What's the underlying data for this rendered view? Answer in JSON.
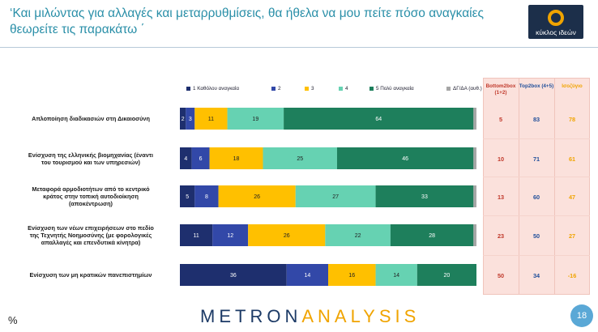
{
  "title": "‘Και μιλώντας για αλλαγές και μεταρρυθμίσεις, θα ήθελα να μου πείτε πόσο αναγκαίες θεωρείτε τις παρακάτω ΄",
  "logo_text": "κύκλος ιδεών",
  "page_number": "18",
  "percent_sign": "%",
  "brand": {
    "part1": "METRON",
    "part2": "ANALYSIS"
  },
  "colors": {
    "title": "#2a8fa8",
    "series": [
      "#1e2f6e",
      "#3248a8",
      "#ffc000",
      "#66d2b2",
      "#1e7f5c",
      "#a6a6a6"
    ],
    "accent_orange": "#f0a400",
    "side_red": "#c0392b",
    "side_blue": "#1f4e9a"
  },
  "side": {
    "headers": [
      "Bottom2box (1+2)",
      "Top2box (4+5)",
      "Ισοζύγιο"
    ],
    "rows": [
      [
        "5",
        "83",
        "78"
      ],
      [
        "10",
        "71",
        "61"
      ],
      [
        "13",
        "60",
        "47"
      ],
      [
        "23",
        "50",
        "27"
      ],
      [
        "50",
        "34",
        "-16"
      ]
    ]
  },
  "chart_data": {
    "type": "bar",
    "orientation": "horizontal",
    "stacked": true,
    "categories": [
      "Απλοποίηση διαδικασιών στη Δικαιοσύνη",
      "Ενίσχυση της ελληνικής βιομηχανίας (έναντι του τουρισμού και των υπηρεσιών)",
      "Μεταφορά αρμοδιοτήτων από το κεντρικό κράτος στην τοπική αυτοδιοίκηση (αποκέντρωση)",
      "Ενίσχυση των νέων επιχειρήσεων στο πεδίο της Τεχνητής Νοημοσύνης (με φορολογικές απαλλαγές και επενδυτικά κίνητρα)",
      "Ενίσχυση των μη κρατικών πανεπιστημίων"
    ],
    "category_lines": [
      [
        "Απλοποίηση διαδικασιών στη Δικαιοσύνη"
      ],
      [
        "Ενίσχυση της ελληνικής βιομηχανίας (έναντι",
        "του τουρισμού και των υπηρεσιών)"
      ],
      [
        "Μεταφορά αρμοδιοτήτων από το κεντρικό",
        "κράτος στην τοπική αυτοδιοίκηση",
        "(αποκέντρωση)"
      ],
      [
        "Ενίσχυση των νέων επιχειρήσεων στο πεδίο",
        "της Τεχνητής Νοημοσύνης (με φορολογικές",
        "απαλλαγές και επενδυτικά κίνητρα)"
      ],
      [
        "Ενίσχυση των μη κρατικών πανεπιστημίων"
      ]
    ],
    "series": [
      {
        "name": "1 Καθόλου αναγκαία",
        "values": [
          2,
          4,
          5,
          11,
          36
        ]
      },
      {
        "name": "2",
        "values": [
          3,
          6,
          8,
          12,
          14
        ]
      },
      {
        "name": "3",
        "values": [
          11,
          18,
          26,
          26,
          16
        ]
      },
      {
        "name": "4",
        "values": [
          19,
          25,
          27,
          22,
          14
        ]
      },
      {
        "name": "5 Πολύ αναγκαία",
        "values": [
          64,
          46,
          33,
          28,
          20
        ]
      },
      {
        "name": "ΔΓ/ΔΑ (αυθ.)",
        "values": [
          1,
          1,
          1,
          1,
          0
        ]
      }
    ],
    "xlim": [
      0,
      100
    ],
    "legend_position": "top",
    "grid": false
  }
}
